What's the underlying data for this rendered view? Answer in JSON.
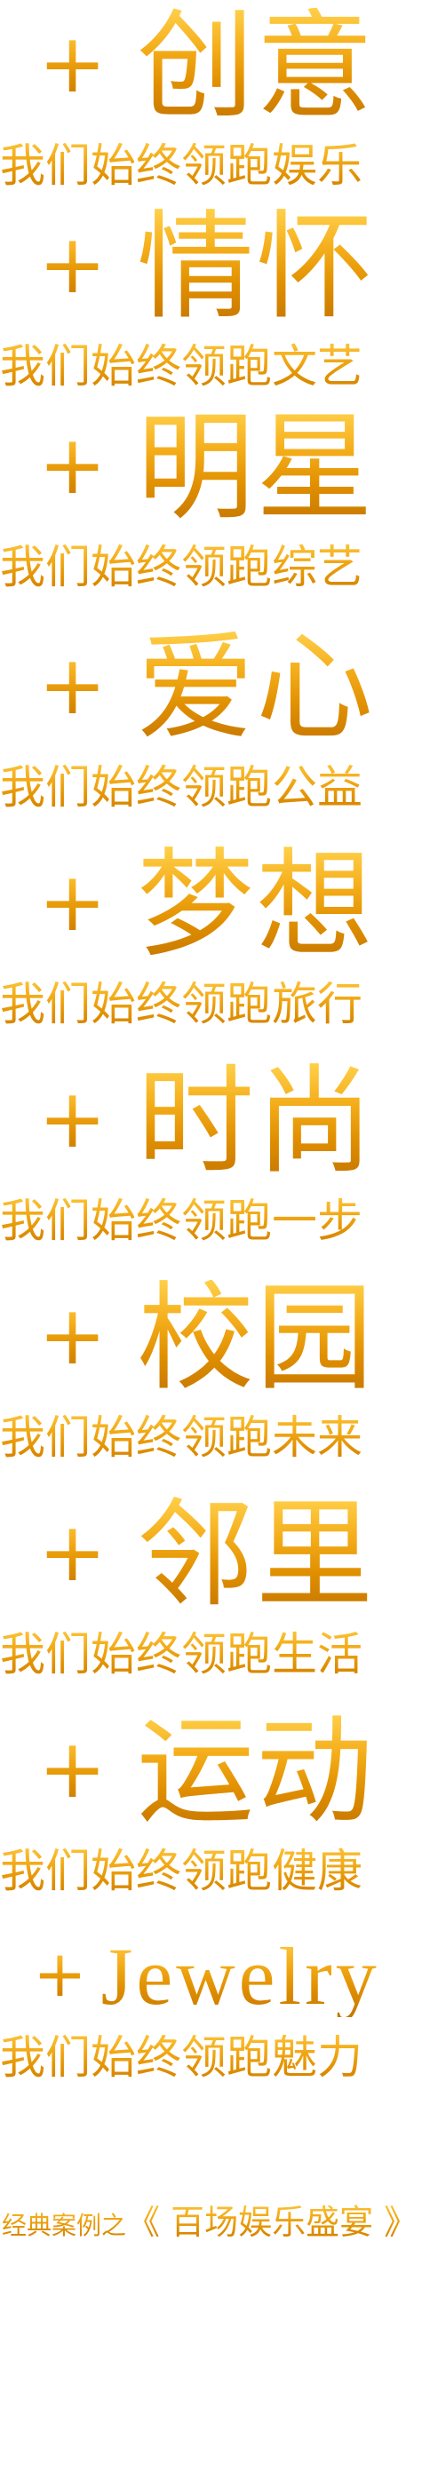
{
  "blocks": [
    {
      "plus": "+",
      "title": "创意",
      "tagline": "我们始终领跑娱乐"
    },
    {
      "plus": "+",
      "title": "情怀",
      "tagline": "我们始终领跑文艺"
    },
    {
      "plus": "+",
      "title": "明星",
      "tagline": "我们始终领跑综艺"
    },
    {
      "plus": "+",
      "title": "爱心",
      "tagline": "我们始终领跑公益"
    },
    {
      "plus": "+",
      "title": "梦想",
      "tagline": "我们始终领跑旅行"
    },
    {
      "plus": "+",
      "title": "时尚",
      "tagline": "我们始终领跑一步"
    },
    {
      "plus": "+",
      "title": "校园",
      "tagline": "我们始终领跑未来"
    },
    {
      "plus": "+",
      "title": "邻里",
      "tagline": "我们始终领跑生活"
    },
    {
      "plus": "+",
      "title": "运动",
      "tagline": "我们始终领跑健康"
    },
    {
      "plus": "+",
      "title": "Jewelry",
      "tagline": "我们始终领跑魅力"
    }
  ],
  "footer": {
    "lead": "经典案例之",
    "highlight": "《 百场娱乐盛宴 》"
  },
  "colors": {
    "gold_light": "#ffd04a",
    "gold_mid": "#f4ad1a",
    "gold_dark": "#c57600",
    "background": "#ffffff"
  }
}
